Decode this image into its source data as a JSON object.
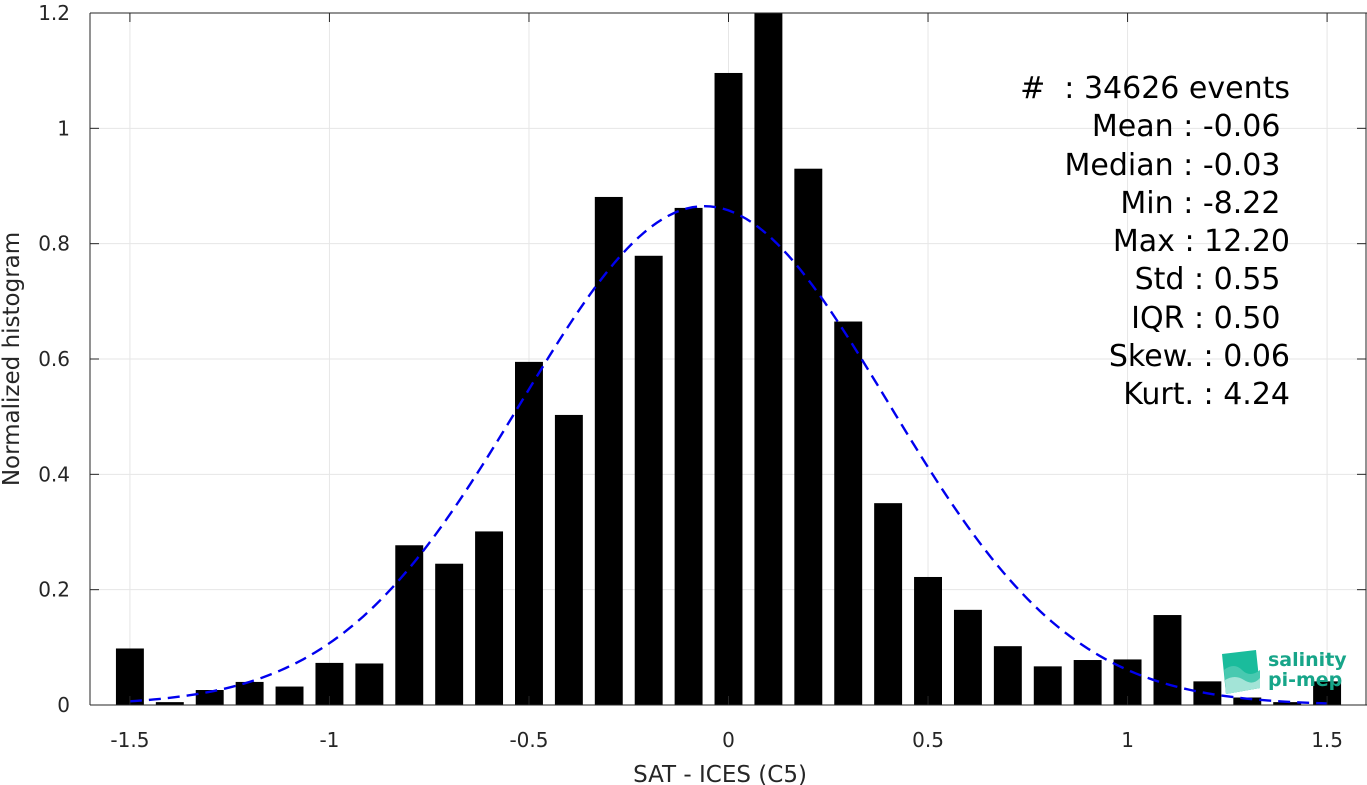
{
  "chart_data": {
    "type": "bar",
    "xlabel": "SAT - ICES (C5)",
    "ylabel": "Normalized histogram",
    "xlim": [
      -1.6,
      1.6
    ],
    "ylim": [
      0,
      1.2
    ],
    "xticks": [
      "-1.5",
      "-1",
      "-0.5",
      "0",
      "0.5",
      "1",
      "1.5"
    ],
    "yticks": [
      "0",
      "0.2",
      "0.4",
      "0.6",
      "0.8",
      "1",
      "1.2"
    ],
    "grid": true,
    "bar_width": 0.07,
    "bars": {
      "x": [
        -1.5,
        -1.4,
        -1.3,
        -1.2,
        -1.1,
        -1.0,
        -0.9,
        -0.8,
        -0.7,
        -0.6,
        -0.5,
        -0.4,
        -0.3,
        -0.2,
        -0.1,
        0.0,
        0.1,
        0.2,
        0.3,
        0.4,
        0.5,
        0.6,
        0.7,
        0.8,
        0.9,
        1.0,
        1.1,
        1.2,
        1.3,
        1.4,
        1.5
      ],
      "values": [
        0.098,
        0.005,
        0.026,
        0.04,
        0.032,
        0.073,
        0.072,
        0.277,
        0.245,
        0.301,
        0.595,
        0.503,
        0.881,
        0.779,
        0.862,
        1.096,
        1.2,
        0.93,
        0.665,
        0.35,
        0.222,
        0.165,
        0.102,
        0.067,
        0.078,
        0.079,
        0.156,
        0.041,
        0.013,
        0.005,
        0.041
      ],
      "color": "#000000"
    },
    "fit_curve": {
      "style": "dashed",
      "color": "#0000ee",
      "mean": -0.06,
      "std": 0.46,
      "peak": 0.865,
      "x_range": [
        -1.5,
        1.5
      ]
    }
  },
  "stats": {
    "lines": [
      "#  : 34626 events",
      "Mean : -0.06 ",
      "Median : -0.03 ",
      "Min : -8.22 ",
      "Max : 12.20",
      "Std : 0.55 ",
      "IQR : 0.50 ",
      "Skew. : 0.06",
      "Kurt. : 4.24"
    ]
  },
  "logo": {
    "line1": "salinity",
    "line2": "pi-mep",
    "color": "#17a589"
  }
}
